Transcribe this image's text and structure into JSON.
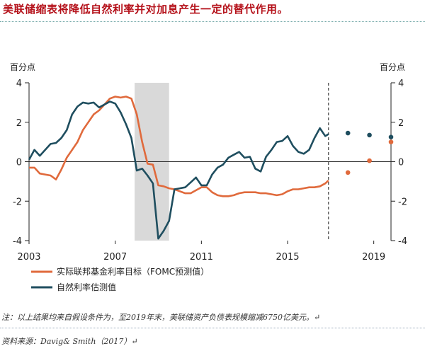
{
  "header": {
    "title": "美联储缩表将降低自然利率并对加息产生一定的替代作用。"
  },
  "chart_data": {
    "type": "line",
    "ylabel_left": "百分点",
    "ylabel_right": "百分点",
    "ylim": [
      -4,
      4
    ],
    "yticks": [
      "4",
      "2",
      "0",
      "-2",
      "-4"
    ],
    "ytick_values": [
      4,
      2,
      0,
      -2,
      -4
    ],
    "xlim": [
      2003,
      2019.8
    ],
    "xticks": [
      "2003",
      "2007",
      "2011",
      "2015",
      "2019"
    ],
    "xtick_values": [
      2003,
      2007,
      2011,
      2015,
      2019
    ],
    "shaded_region": [
      2007.9,
      2009.5
    ],
    "forecast_divider_x": 2016.9,
    "legend_position": "bottom-left",
    "series": [
      {
        "name": "实际联邦基金利率目标（FOMC预测值）",
        "color": "#e06a3c",
        "x": [
          2003,
          2003.25,
          2003.5,
          2003.75,
          2004,
          2004.25,
          2004.5,
          2004.75,
          2005,
          2005.25,
          2005.5,
          2005.75,
          2006,
          2006.25,
          2006.5,
          2006.75,
          2007,
          2007.25,
          2007.5,
          2007.75,
          2008,
          2008.25,
          2008.5,
          2008.75,
          2009,
          2009.25,
          2009.5,
          2009.75,
          2010,
          2010.25,
          2010.5,
          2010.75,
          2011,
          2011.25,
          2011.5,
          2011.75,
          2012,
          2012.25,
          2012.5,
          2012.75,
          2013,
          2013.25,
          2013.5,
          2013.75,
          2014,
          2014.25,
          2014.5,
          2014.75,
          2015,
          2015.25,
          2015.5,
          2015.75,
          2016,
          2016.25,
          2016.5,
          2016.75,
          2016.9
        ],
        "values": [
          -0.3,
          -0.3,
          -0.6,
          -0.65,
          -0.7,
          -0.9,
          -0.4,
          0.2,
          0.6,
          1.0,
          1.6,
          2.0,
          2.4,
          2.6,
          2.9,
          3.2,
          3.3,
          3.25,
          3.3,
          3.2,
          2.4,
          1.0,
          -0.1,
          -0.15,
          -1.2,
          -1.25,
          -1.35,
          -1.4,
          -1.5,
          -1.6,
          -1.6,
          -1.45,
          -1.3,
          -1.3,
          -1.55,
          -1.7,
          -1.75,
          -1.75,
          -1.7,
          -1.6,
          -1.55,
          -1.55,
          -1.55,
          -1.6,
          -1.6,
          -1.65,
          -1.7,
          -1.65,
          -1.5,
          -1.4,
          -1.4,
          -1.35,
          -1.3,
          -1.3,
          -1.25,
          -1.1,
          -0.95
        ],
        "projection_x": [
          2017.8,
          2018.8,
          2019.8
        ],
        "projection_values": [
          -0.55,
          0.05,
          1.0
        ]
      },
      {
        "name": "自然利率估测值",
        "color": "#1f4e5f",
        "x": [
          2003,
          2003.25,
          2003.5,
          2003.75,
          2004,
          2004.25,
          2004.5,
          2004.75,
          2005,
          2005.25,
          2005.5,
          2005.75,
          2006,
          2006.25,
          2006.5,
          2006.75,
          2007,
          2007.25,
          2007.5,
          2007.75,
          2008,
          2008.25,
          2008.5,
          2008.75,
          2009,
          2009.25,
          2009.5,
          2009.75,
          2010,
          2010.25,
          2010.5,
          2010.75,
          2011,
          2011.25,
          2011.5,
          2011.75,
          2012,
          2012.25,
          2012.5,
          2012.75,
          2013,
          2013.25,
          2013.5,
          2013.75,
          2014,
          2014.25,
          2014.5,
          2014.75,
          2015,
          2015.25,
          2015.5,
          2015.75,
          2016,
          2016.25,
          2016.5,
          2016.75,
          2016.9
        ],
        "values": [
          0.1,
          0.6,
          0.3,
          0.6,
          0.9,
          0.95,
          1.2,
          1.6,
          2.4,
          2.8,
          3.0,
          2.95,
          3.0,
          2.75,
          2.9,
          3.05,
          2.95,
          2.5,
          1.9,
          1.2,
          -0.45,
          -0.35,
          -0.7,
          -1.1,
          -3.9,
          -3.5,
          -3.0,
          -1.4,
          -1.35,
          -1.3,
          -1.05,
          -0.8,
          -1.2,
          -1.2,
          -0.65,
          -0.3,
          -0.15,
          0.2,
          0.35,
          0.5,
          0.2,
          0.25,
          -0.35,
          -0.5,
          0.25,
          0.6,
          1.0,
          1.05,
          1.3,
          0.8,
          0.5,
          0.4,
          0.6,
          1.2,
          1.7,
          1.3,
          1.4
        ],
        "projection_x": [
          2017.8,
          2018.8,
          2019.8
        ],
        "projection_values": [
          1.45,
          1.35,
          1.25
        ]
      }
    ]
  },
  "footer": {
    "note": "注：以上结果均来自假设条件为，至2019年末，美联储资产负债表规模缩减6750亿美元。↵",
    "source": "资料来源：Davig& Smith（2017）↵"
  }
}
